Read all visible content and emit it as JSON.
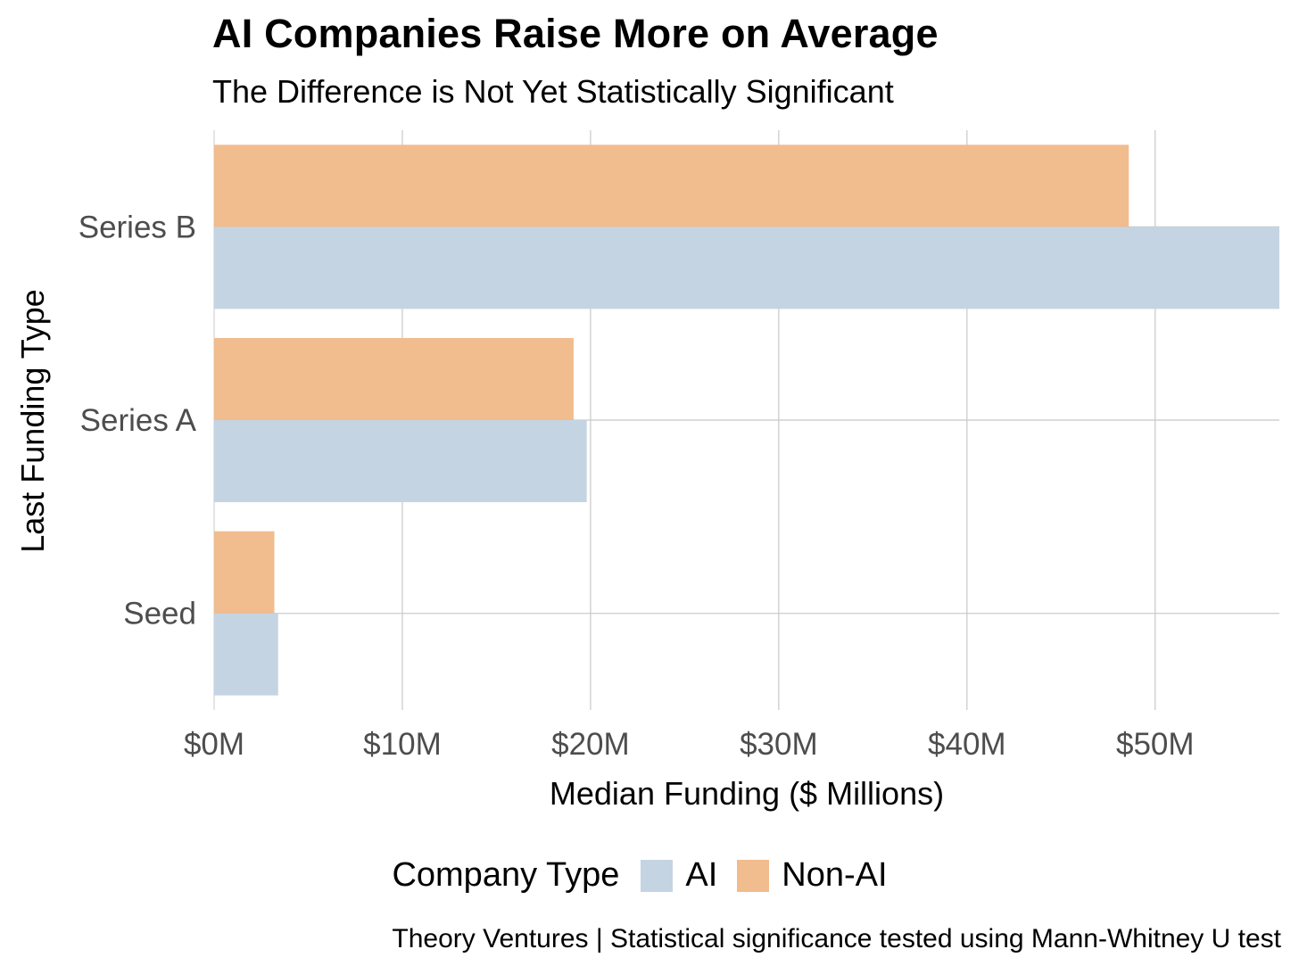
{
  "title": "AI Companies Raise More on Average",
  "subtitle": "The Difference is Not Yet Statistically Significant",
  "caption": "Theory Ventures | Statistical significance tested using Mann-Whitney U test",
  "colors": {
    "AI": "#c5d4e2",
    "Non-AI": "#f1bc8e",
    "grid": "#c8c8c8",
    "tick_text": "#4d4d4d"
  },
  "chart_data": {
    "type": "bar",
    "orientation": "horizontal",
    "title": "AI Companies Raise More on Average",
    "subtitle": "The Difference is Not Yet Statistically Significant",
    "xlabel": "Median Funding ($ Millions)",
    "ylabel": "Last Funding Type",
    "categories": [
      "Seed",
      "Series A",
      "Series B"
    ],
    "series": [
      {
        "name": "AI",
        "values": [
          3.4,
          19.8,
          56.6
        ]
      },
      {
        "name": "Non-AI",
        "values": [
          3.2,
          19.1,
          48.6
        ]
      }
    ],
    "xlim": [
      0,
      56.6
    ],
    "xticks": [
      0,
      10,
      20,
      30,
      40,
      50
    ],
    "xtick_labels": [
      "$0M",
      "$10M",
      "$20M",
      "$30M",
      "$40M",
      "$50M"
    ],
    "grid": true,
    "legend": {
      "title": "Company Type",
      "entries": [
        "AI",
        "Non-AI"
      ],
      "position": "bottom"
    }
  }
}
